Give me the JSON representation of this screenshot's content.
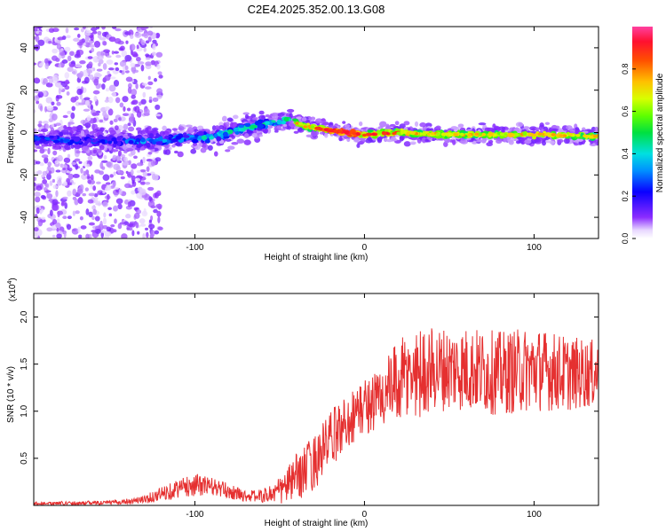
{
  "title": "C2E4.2025.352.00.13.G08",
  "colors": {
    "snr_line": "#e53030",
    "spec_low": "#7a2cff",
    "spec_high": "#ff2020"
  },
  "chart_data": [
    {
      "type": "heatmap",
      "name": "spectrogram",
      "xlabel": "Height of straight line (km)",
      "ylabel": "Frequency (Hz)",
      "xlim": [
        -195,
        138
      ],
      "ylim": [
        -50,
        50
      ],
      "xticks": [
        -100,
        0,
        100
      ],
      "yticks": [
        -40,
        -20,
        0,
        20,
        40
      ],
      "colorbar": {
        "label": "Normalized spectral amplitude",
        "range": [
          0,
          1
        ],
        "ticks": [
          "0.0",
          "0.2",
          "0.4",
          "0.6",
          "0.8"
        ]
      },
      "ridge": [
        {
          "x": -190,
          "f": -3,
          "amp": 0.35
        },
        {
          "x": -170,
          "f": -4,
          "amp": 0.35
        },
        {
          "x": -150,
          "f": -4,
          "amp": 0.35
        },
        {
          "x": -130,
          "f": -4,
          "amp": 0.4
        },
        {
          "x": -110,
          "f": -3,
          "amp": 0.45
        },
        {
          "x": -90,
          "f": -2,
          "amp": 0.5
        },
        {
          "x": -70,
          "f": 2,
          "amp": 0.5
        },
        {
          "x": -55,
          "f": 5,
          "amp": 0.5
        },
        {
          "x": -45,
          "f": 6,
          "amp": 0.6
        },
        {
          "x": -35,
          "f": 3,
          "amp": 0.75
        },
        {
          "x": -20,
          "f": 1,
          "amp": 0.9
        },
        {
          "x": -10,
          "f": 0,
          "amp": 1.0
        },
        {
          "x": 0,
          "f": -1,
          "amp": 0.85
        },
        {
          "x": 20,
          "f": 0,
          "amp": 0.8
        },
        {
          "x": 50,
          "f": -1,
          "amp": 0.75
        },
        {
          "x": 80,
          "f": -1,
          "amp": 0.75
        },
        {
          "x": 110,
          "f": -1,
          "amp": 0.8
        },
        {
          "x": 138,
          "f": -2,
          "amp": 0.7
        }
      ]
    },
    {
      "type": "line",
      "name": "snr",
      "xlabel": "Height of straight line (km)",
      "ylabel": "SNR (10 * v/v)",
      "y_multiplier": "(x10",
      "y_multiplier_exp": "4",
      "xlim": [
        -195,
        138
      ],
      "ylim": [
        0,
        2.25
      ],
      "xticks": [
        -100,
        0,
        100
      ],
      "yticks": [
        "0.5",
        "1.0",
        "1.5",
        "2.0"
      ],
      "series": [
        {
          "name": "SNR",
          "envelope_x": [
            -195,
            -150,
            -130,
            -120,
            -110,
            -100,
            -90,
            -80,
            -70,
            -60,
            -50,
            -40,
            -30,
            -20,
            -10,
            0,
            10,
            20,
            30,
            40,
            60,
            80,
            100,
            120,
            138
          ],
          "envelope_mid": [
            0.02,
            0.03,
            0.06,
            0.12,
            0.18,
            0.22,
            0.2,
            0.15,
            0.1,
            0.1,
            0.15,
            0.3,
            0.45,
            0.7,
            0.9,
            1.05,
            1.15,
            1.3,
            1.4,
            1.45,
            1.45,
            1.4,
            1.45,
            1.4,
            1.4
          ],
          "envelope_amp": [
            0.02,
            0.02,
            0.04,
            0.08,
            0.1,
            0.12,
            0.1,
            0.08,
            0.06,
            0.07,
            0.15,
            0.25,
            0.3,
            0.3,
            0.3,
            0.3,
            0.35,
            0.45,
            0.5,
            0.45,
            0.45,
            0.45,
            0.45,
            0.4,
            0.35
          ]
        }
      ]
    }
  ]
}
